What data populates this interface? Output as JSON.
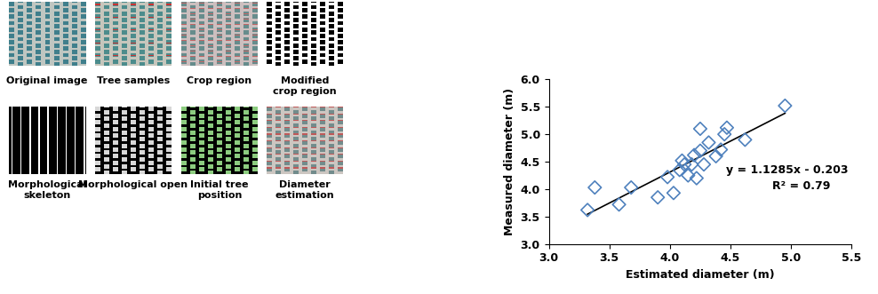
{
  "image_panels": {
    "captions": [
      [
        "Original image",
        "Tree samples",
        "Crop region",
        "Modified\ncrop region"
      ],
      [
        "Morphological\nskeleton",
        "Morphological open",
        "Initial tree\nposition",
        "Diameter\nestimation"
      ]
    ]
  },
  "chart_data": {
    "type": "scatter",
    "x_label": "Estimated diameter (m)",
    "y_label": "Measured diameter (m)",
    "x": [
      3.32,
      3.38,
      3.58,
      3.68,
      3.9,
      3.98,
      4.03,
      4.08,
      4.1,
      4.12,
      4.15,
      4.18,
      4.2,
      4.22,
      4.25,
      4.25,
      4.28,
      4.32,
      4.38,
      4.42,
      4.45,
      4.47,
      4.62,
      4.95
    ],
    "values": [
      3.62,
      4.03,
      3.72,
      4.03,
      3.85,
      4.22,
      3.93,
      4.35,
      4.52,
      4.45,
      4.25,
      4.45,
      4.62,
      4.2,
      4.7,
      5.1,
      4.45,
      4.85,
      4.6,
      4.72,
      5.0,
      5.12,
      4.9,
      5.52
    ],
    "color": "#4f81bd",
    "marker": "diamond",
    "xlim": [
      3.0,
      5.5
    ],
    "xticks": [
      {
        "value": 3.0,
        "label": "3.0"
      },
      {
        "value": 3.5,
        "label": "3.5"
      },
      {
        "value": 4.0,
        "label": "4.0"
      },
      {
        "value": 4.5,
        "label": "4.5"
      },
      {
        "value": 5.0,
        "label": "5.0"
      },
      {
        "value": 5.5,
        "label": "5.5"
      }
    ],
    "ylim": [
      3.0,
      6.0
    ],
    "yticks": [
      {
        "value": 3.0,
        "label": "3.0"
      },
      {
        "value": 3.5,
        "label": "3.5"
      },
      {
        "value": 4.0,
        "label": "4.0"
      },
      {
        "value": 4.5,
        "label": "4.5"
      },
      {
        "value": 5.0,
        "label": "5.0"
      },
      {
        "value": 5.5,
        "label": "5.5"
      },
      {
        "value": 6.0,
        "label": "6.0"
      }
    ],
    "trendline": {
      "slope": 1.1285,
      "intercept": -0.203
    },
    "annotations": [
      "y = 1.1285x - 0.203",
      "R² = 0.79"
    ]
  }
}
